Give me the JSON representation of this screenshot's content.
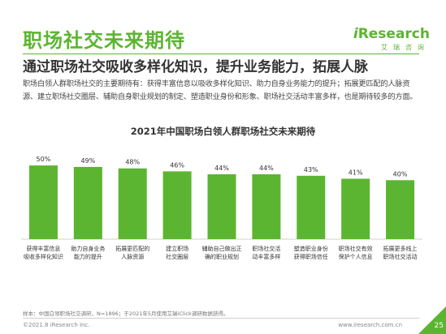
{
  "header": {
    "title": "职场社交未来期待",
    "subtitle": "通过职场社交吸收多样化知识，提升业务能力，拓展人脉",
    "logo_prefix": "i",
    "logo_main": "Research",
    "logo_sub": "艾瑞咨询"
  },
  "body": {
    "lines": [
      "职场白领人群职场社交的主要期待有：获得丰富信息以吸收多样化知识、助力自身业务能力的提升；拓展更匹配的人脉资",
      "源、建立职场社交圈层、辅助自身职业规划的制定、塑造职业身份和形象、职场社交活动丰富多样，也是期待较多的方面。"
    ]
  },
  "chart_data": {
    "type": "bar",
    "title": "2021年中国职场白领人群职场社交未来期待",
    "categories": [
      [
        "获得丰富信息",
        "吸收多样化知识"
      ],
      [
        "助力自身业务",
        "能力的提升"
      ],
      [
        "拓展更匹配的",
        "人脉资源"
      ],
      [
        "建立职场",
        "社交圈层"
      ],
      [
        "辅助自己做出正",
        "确的职业规划"
      ],
      [
        "职场社交活",
        "动丰富多样"
      ],
      [
        "塑造职业身份",
        "获得职场信任"
      ],
      [
        "职场社交有效",
        "保护个人信息"
      ],
      [
        "拓展更多线上",
        "职场社交活动"
      ]
    ],
    "values": [
      50,
      49,
      48,
      46,
      44,
      44,
      43,
      41,
      40
    ],
    "value_labels": [
      "50%",
      "49%",
      "48%",
      "46%",
      "44%",
      "44%",
      "43%",
      "41%",
      "40%"
    ],
    "ylim": [
      0,
      55
    ],
    "grid": false,
    "colors": {
      "bar": "#5cb531",
      "text": "#333333",
      "axis": "#d0d0d0"
    }
  },
  "footer": {
    "note": "样本：中国白领职场社交调研，N=1896；于2021年5月使用艾瑞iClick调研数据获得。",
    "copyright": "©2021.8 iResearch Inc.",
    "website": "www.iresearch.com.cn",
    "page_number": "25"
  },
  "colors": {
    "brand": "#5cb531"
  }
}
